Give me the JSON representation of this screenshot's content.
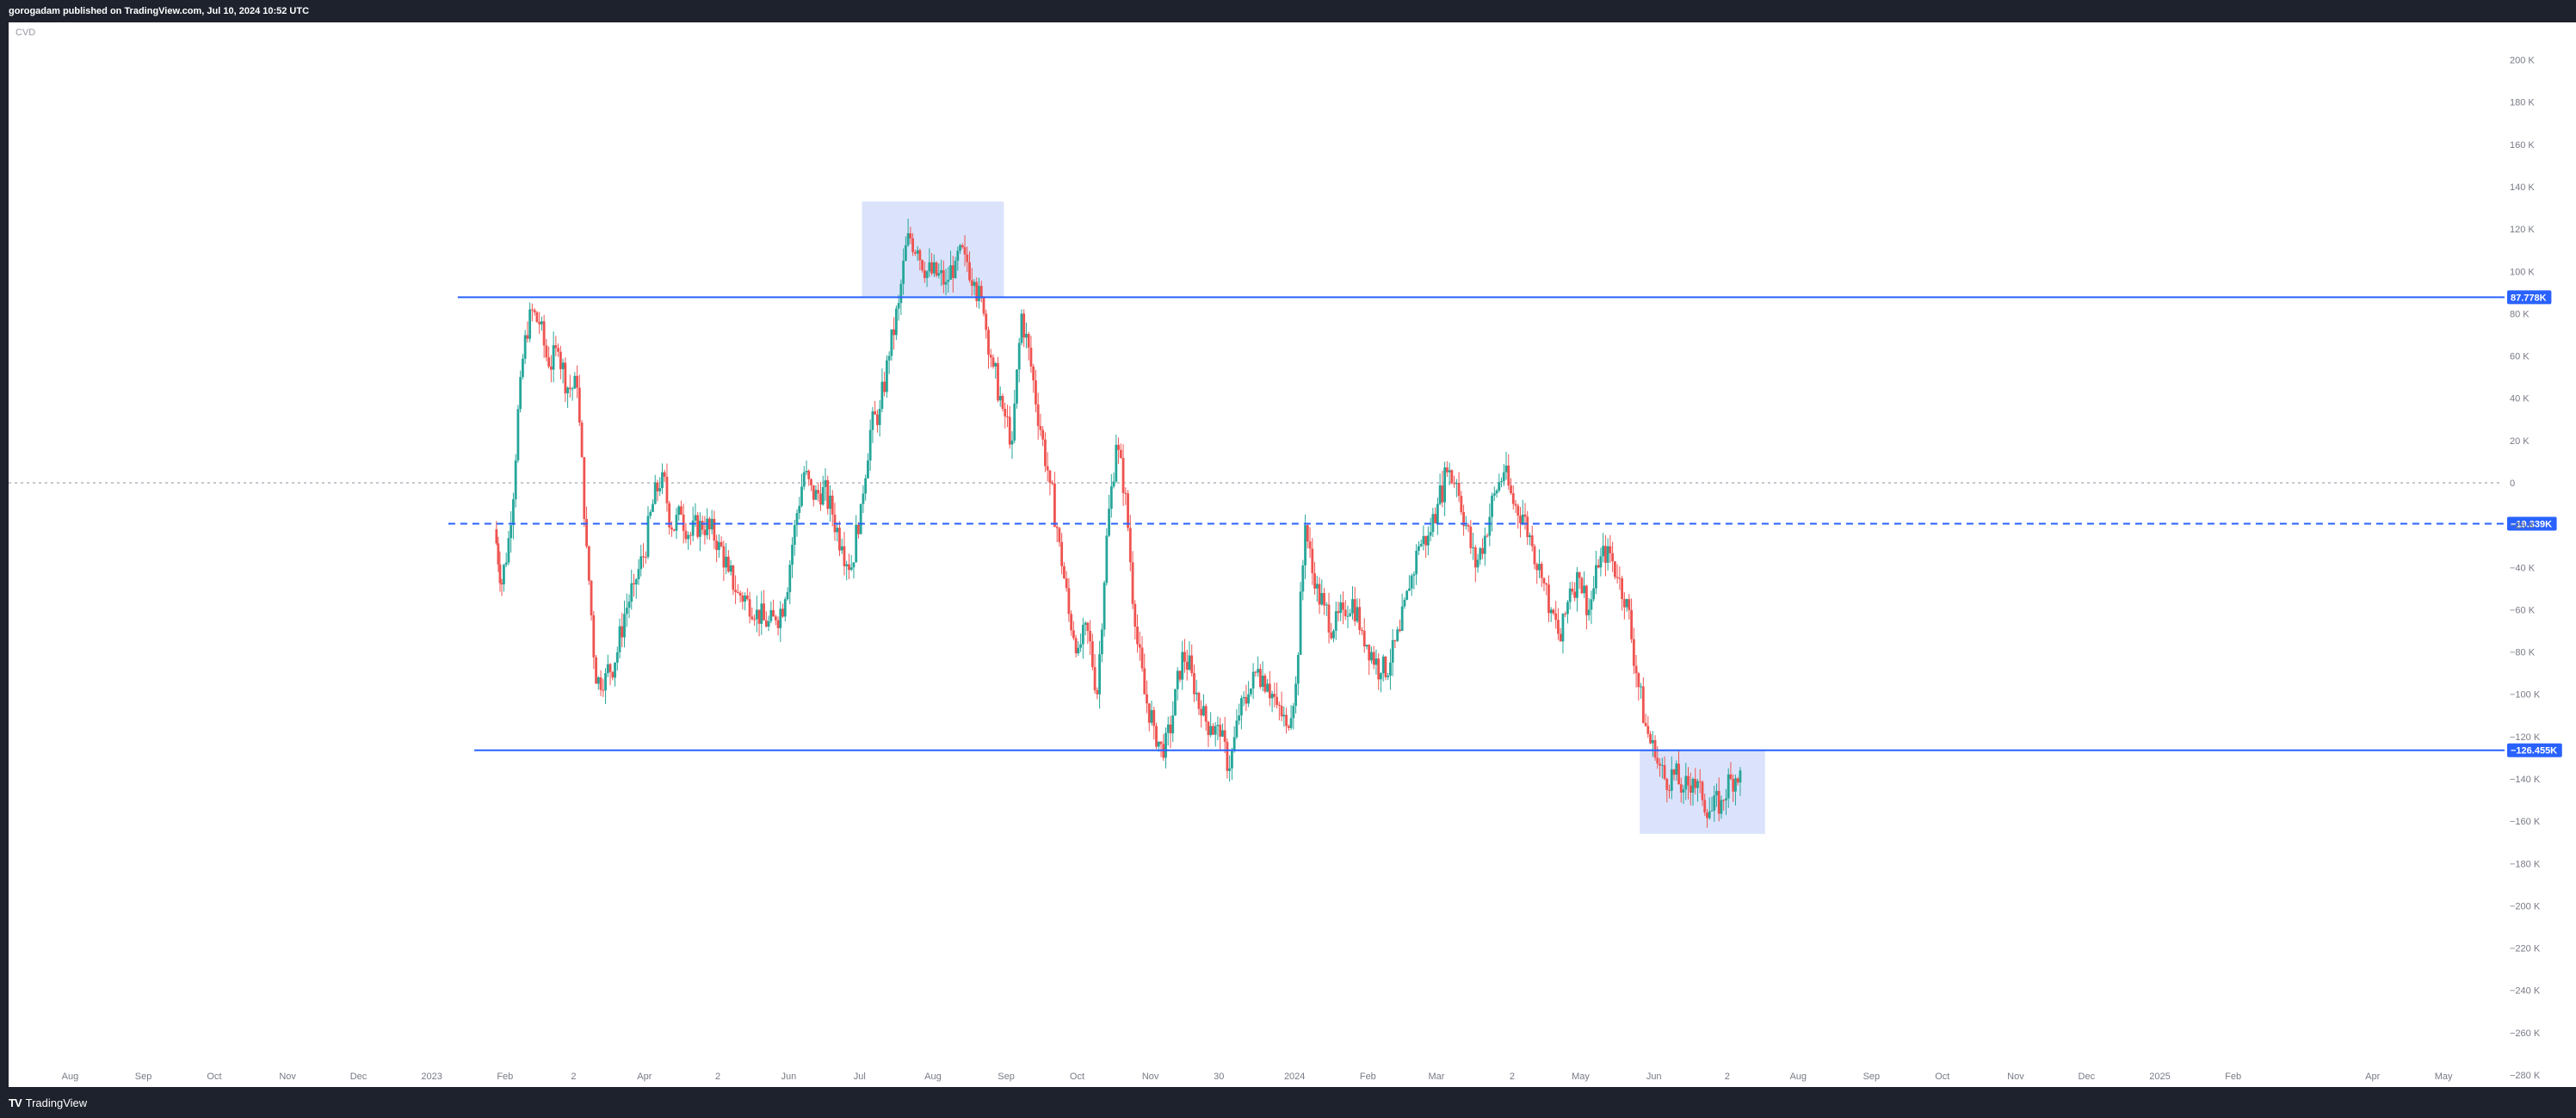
{
  "header": {
    "publish_text": "gorogadam published on TradingView.com, Jul 10, 2024 10:52 UTC"
  },
  "footer": {
    "brand_icon": "TV",
    "brand_name": "TradingView"
  },
  "indicator": {
    "name": "CVD"
  },
  "colors": {
    "up": "#26a69a",
    "down": "#ef5350",
    "level_line": "#2962ff",
    "zone_fill": "#d6e0fb",
    "axis_text": "#787b86",
    "zero_line": "#b2b5be"
  },
  "chart_data": {
    "type": "candlestick",
    "indicator": "CVD",
    "ylim": [
      -280,
      210
    ],
    "y_unit": "K",
    "y_ticks": [
      {
        "value": 200,
        "label": "200 K"
      },
      {
        "value": 180,
        "label": "180 K"
      },
      {
        "value": 160,
        "label": "160 K"
      },
      {
        "value": 140,
        "label": "140 K"
      },
      {
        "value": 120,
        "label": "120 K"
      },
      {
        "value": 100,
        "label": "100 K"
      },
      {
        "value": 80,
        "label": "80 K"
      },
      {
        "value": 60,
        "label": "60 K"
      },
      {
        "value": 40,
        "label": "40 K"
      },
      {
        "value": 20,
        "label": "20 K"
      },
      {
        "value": 0,
        "label": "0"
      },
      {
        "value": -20,
        "label": "−20 K"
      },
      {
        "value": -40,
        "label": "−40 K"
      },
      {
        "value": -60,
        "label": "−60 K"
      },
      {
        "value": -80,
        "label": "−80 K"
      },
      {
        "value": -100,
        "label": "−100 K"
      },
      {
        "value": -120,
        "label": "−120 K"
      },
      {
        "value": -140,
        "label": "−140 K"
      },
      {
        "value": -160,
        "label": "−160 K"
      },
      {
        "value": -180,
        "label": "−180 K"
      },
      {
        "value": -200,
        "label": "−200 K"
      },
      {
        "value": -220,
        "label": "−220 K"
      },
      {
        "value": -240,
        "label": "−240 K"
      },
      {
        "value": -260,
        "label": "−260 K"
      },
      {
        "value": -280,
        "label": "−280 K"
      }
    ],
    "x_ticks": [
      {
        "date": "2022-08-01",
        "label": "Aug"
      },
      {
        "date": "2022-09-01",
        "label": "Sep"
      },
      {
        "date": "2022-10-01",
        "label": "Oct"
      },
      {
        "date": "2022-11-01",
        "label": "Nov"
      },
      {
        "date": "2022-12-01",
        "label": "Dec"
      },
      {
        "date": "2023-01-01",
        "label": "2023"
      },
      {
        "date": "2023-02-01",
        "label": "Feb"
      },
      {
        "date": "2023-03-02",
        "label": "2"
      },
      {
        "date": "2023-04-01",
        "label": "Apr"
      },
      {
        "date": "2023-05-02",
        "label": "2"
      },
      {
        "date": "2023-06-01",
        "label": "Jun"
      },
      {
        "date": "2023-07-01",
        "label": "Jul"
      },
      {
        "date": "2023-08-01",
        "label": "Aug"
      },
      {
        "date": "2023-09-01",
        "label": "Sep"
      },
      {
        "date": "2023-10-01",
        "label": "Oct"
      },
      {
        "date": "2023-11-01",
        "label": "Nov"
      },
      {
        "date": "2023-11-30",
        "label": "30"
      },
      {
        "date": "2024-01-01",
        "label": "2024"
      },
      {
        "date": "2024-02-01",
        "label": "Feb"
      },
      {
        "date": "2024-03-01",
        "label": "Mar"
      },
      {
        "date": "2024-04-02",
        "label": "2"
      },
      {
        "date": "2024-05-01",
        "label": "May"
      },
      {
        "date": "2024-06-01",
        "label": "Jun"
      },
      {
        "date": "2024-07-02",
        "label": "2"
      },
      {
        "date": "2024-08-01",
        "label": "Aug"
      },
      {
        "date": "2024-09-01",
        "label": "Sep"
      },
      {
        "date": "2024-10-01",
        "label": "Oct"
      },
      {
        "date": "2024-11-01",
        "label": "Nov"
      },
      {
        "date": "2024-12-01",
        "label": "Dec"
      },
      {
        "date": "2025-01-01",
        "label": "2025"
      },
      {
        "date": "2025-02-01",
        "label": "Feb"
      },
      {
        "date": "2025-04-01",
        "label": "Apr"
      },
      {
        "date": "2025-05-01",
        "label": "May"
      }
    ],
    "x_range": [
      "2022-07-06",
      "2025-05-25"
    ],
    "horizontal_lines": [
      {
        "value": 87.778,
        "label": "87.778K",
        "style": "solid",
        "start": "2023-01-12"
      },
      {
        "value": -19.339,
        "label": "−19.339K",
        "style": "dashed",
        "start": "2023-01-08"
      },
      {
        "value": -126.455,
        "label": "−126.455K",
        "style": "solid",
        "start": "2023-01-19"
      }
    ],
    "zero_line": {
      "value": 0,
      "style": "dotted"
    },
    "zones": [
      {
        "from": "2023-07-02",
        "to": "2023-08-31",
        "high": 133,
        "low": 88
      },
      {
        "from": "2024-05-26",
        "to": "2024-07-18",
        "high": -126,
        "low": -166
      }
    ],
    "series": [
      {
        "data": [
          [
            "2023-01-28",
            -22
          ],
          [
            "2023-01-31",
            -48
          ],
          [
            "2023-02-04",
            -20
          ],
          [
            "2023-02-08",
            50
          ],
          [
            "2023-02-12",
            82
          ],
          [
            "2023-02-16",
            75
          ],
          [
            "2023-02-20",
            55
          ],
          [
            "2023-02-24",
            62
          ],
          [
            "2023-02-28",
            45
          ],
          [
            "2023-03-04",
            45
          ],
          [
            "2023-03-08",
            -30
          ],
          [
            "2023-03-12",
            -95
          ],
          [
            "2023-03-16",
            -90
          ],
          [
            "2023-03-20",
            -85
          ],
          [
            "2023-03-24",
            -62
          ],
          [
            "2023-03-28",
            -48
          ],
          [
            "2023-04-01",
            -35
          ],
          [
            "2023-04-05",
            -10
          ],
          [
            "2023-04-09",
            5
          ],
          [
            "2023-04-13",
            -22
          ],
          [
            "2023-04-17",
            -15
          ],
          [
            "2023-04-21",
            -25
          ],
          [
            "2023-04-25",
            -18
          ],
          [
            "2023-04-29",
            -22
          ],
          [
            "2023-05-03",
            -28
          ],
          [
            "2023-05-07",
            -42
          ],
          [
            "2023-05-11",
            -52
          ],
          [
            "2023-05-15",
            -55
          ],
          [
            "2023-05-19",
            -60
          ],
          [
            "2023-05-23",
            -68
          ],
          [
            "2023-05-27",
            -65
          ],
          [
            "2023-05-31",
            -55
          ],
          [
            "2023-06-04",
            -20
          ],
          [
            "2023-06-08",
            5
          ],
          [
            "2023-06-12",
            -8
          ],
          [
            "2023-06-16",
            -2
          ],
          [
            "2023-06-20",
            -15
          ],
          [
            "2023-06-24",
            -30
          ],
          [
            "2023-06-28",
            -40
          ],
          [
            "2023-07-02",
            -10
          ],
          [
            "2023-07-06",
            25
          ],
          [
            "2023-07-10",
            35
          ],
          [
            "2023-07-14",
            60
          ],
          [
            "2023-07-18",
            85
          ],
          [
            "2023-07-22",
            118
          ],
          [
            "2023-07-26",
            110
          ],
          [
            "2023-07-30",
            100
          ],
          [
            "2023-08-03",
            98
          ],
          [
            "2023-08-07",
            95
          ],
          [
            "2023-08-11",
            105
          ],
          [
            "2023-08-15",
            108
          ],
          [
            "2023-08-19",
            95
          ],
          [
            "2023-08-23",
            80
          ],
          [
            "2023-08-27",
            55
          ],
          [
            "2023-08-31",
            35
          ],
          [
            "2023-09-04",
            20
          ],
          [
            "2023-09-08",
            80
          ],
          [
            "2023-09-12",
            55
          ],
          [
            "2023-09-16",
            25
          ],
          [
            "2023-09-20",
            0
          ],
          [
            "2023-09-24",
            -28
          ],
          [
            "2023-09-28",
            -62
          ],
          [
            "2023-10-02",
            -78
          ],
          [
            "2023-10-06",
            -70
          ],
          [
            "2023-10-10",
            -100
          ],
          [
            "2023-10-14",
            -25
          ],
          [
            "2023-10-18",
            18
          ],
          [
            "2023-10-22",
            -5
          ],
          [
            "2023-10-26",
            -68
          ],
          [
            "2023-10-30",
            -100
          ],
          [
            "2023-11-03",
            -115
          ],
          [
            "2023-11-07",
            -130
          ],
          [
            "2023-11-11",
            -110
          ],
          [
            "2023-11-15",
            -80
          ],
          [
            "2023-11-19",
            -90
          ],
          [
            "2023-11-23",
            -110
          ],
          [
            "2023-11-27",
            -115
          ],
          [
            "2023-12-01",
            -120
          ],
          [
            "2023-12-05",
            -135
          ],
          [
            "2023-12-09",
            -110
          ],
          [
            "2023-12-13",
            -100
          ],
          [
            "2023-12-17",
            -88
          ],
          [
            "2023-12-21",
            -95
          ],
          [
            "2023-12-25",
            -105
          ],
          [
            "2023-12-29",
            -115
          ],
          [
            "2024-01-02",
            -95
          ],
          [
            "2024-01-06",
            -20
          ],
          [
            "2024-01-10",
            -50
          ],
          [
            "2024-01-14",
            -58
          ],
          [
            "2024-01-18",
            -70
          ],
          [
            "2024-01-22",
            -60
          ],
          [
            "2024-01-26",
            -55
          ],
          [
            "2024-01-30",
            -70
          ],
          [
            "2024-02-03",
            -80
          ],
          [
            "2024-02-07",
            -90
          ],
          [
            "2024-02-11",
            -85
          ],
          [
            "2024-02-15",
            -70
          ],
          [
            "2024-02-19",
            -50
          ],
          [
            "2024-02-23",
            -30
          ],
          [
            "2024-02-27",
            -25
          ],
          [
            "2024-03-02",
            -10
          ],
          [
            "2024-03-06",
            5
          ],
          [
            "2024-03-10",
            0
          ],
          [
            "2024-03-14",
            -20
          ],
          [
            "2024-03-18",
            -40
          ],
          [
            "2024-03-22",
            -25
          ],
          [
            "2024-03-26",
            -5
          ],
          [
            "2024-03-30",
            5
          ],
          [
            "2024-04-03",
            -10
          ],
          [
            "2024-04-07",
            -15
          ],
          [
            "2024-04-11",
            -30
          ],
          [
            "2024-04-15",
            -45
          ],
          [
            "2024-04-19",
            -60
          ],
          [
            "2024-04-23",
            -75
          ],
          [
            "2024-04-27",
            -50
          ],
          [
            "2024-05-01",
            -45
          ],
          [
            "2024-05-05",
            -60
          ],
          [
            "2024-05-09",
            -40
          ],
          [
            "2024-05-13",
            -30
          ],
          [
            "2024-05-17",
            -45
          ],
          [
            "2024-05-21",
            -55
          ],
          [
            "2024-05-25",
            -90
          ],
          [
            "2024-05-29",
            -115
          ],
          [
            "2024-06-02",
            -130
          ],
          [
            "2024-06-06",
            -140
          ],
          [
            "2024-06-10",
            -138
          ],
          [
            "2024-06-14",
            -145
          ],
          [
            "2024-06-18",
            -140
          ],
          [
            "2024-06-22",
            -150
          ],
          [
            "2024-06-26",
            -155
          ],
          [
            "2024-06-30",
            -150
          ],
          [
            "2024-07-04",
            -140
          ],
          [
            "2024-07-08",
            -136
          ]
        ]
      }
    ]
  }
}
